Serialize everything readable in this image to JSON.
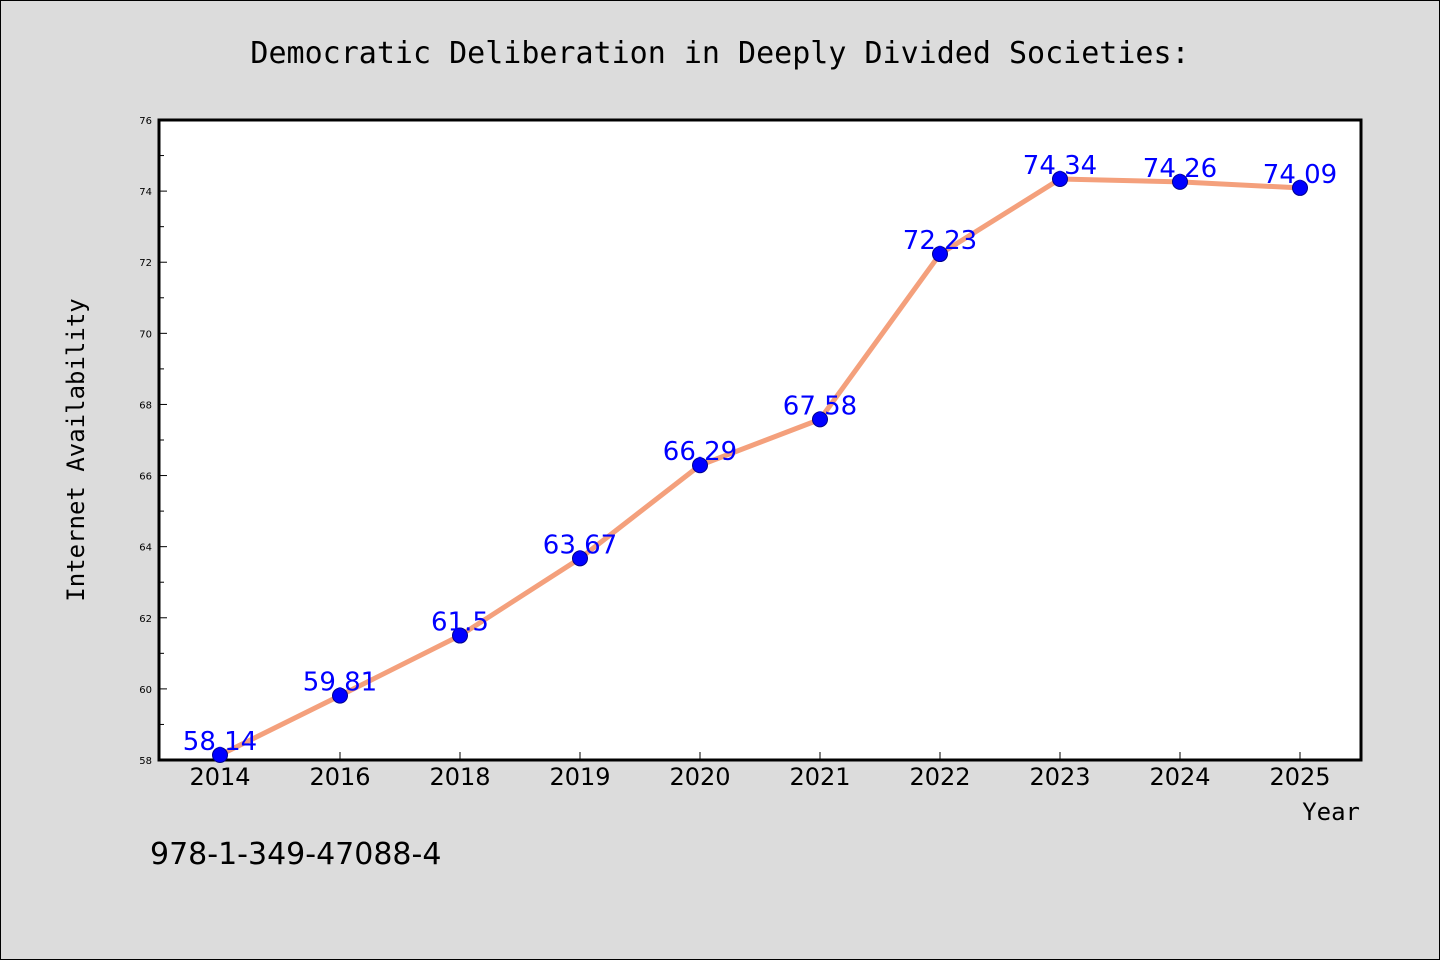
{
  "chart_data": {
    "type": "line",
    "title": "Democratic Deliberation in Deeply Divided Societies:",
    "xlabel": "Year",
    "ylabel": "Internet Availability",
    "categories": [
      "2014",
      "2016",
      "2018",
      "2019",
      "2020",
      "2021",
      "2022",
      "2023",
      "2024",
      "2025"
    ],
    "values": [
      58.14,
      59.81,
      61.5,
      63.67,
      66.29,
      67.58,
      72.23,
      74.34,
      74.26,
      74.09
    ],
    "data_labels": [
      "58.14",
      "59.81",
      "61.5",
      "63.67",
      "66.29",
      "67.58",
      "72.23",
      "74.34",
      "74.26",
      "74.09"
    ],
    "ylim": [
      58,
      76
    ],
    "yticks": [
      58,
      60,
      62,
      64,
      66,
      68,
      70,
      72,
      74,
      76
    ],
    "grid": false,
    "legend": "none",
    "colors": {
      "line": "#f4a07c",
      "marker": "#0000ff",
      "data_label": "#0000ff",
      "background": "#dcdcdc",
      "plot_background": "#ffffff"
    }
  },
  "footer_text": "978-1-349-47088-4"
}
